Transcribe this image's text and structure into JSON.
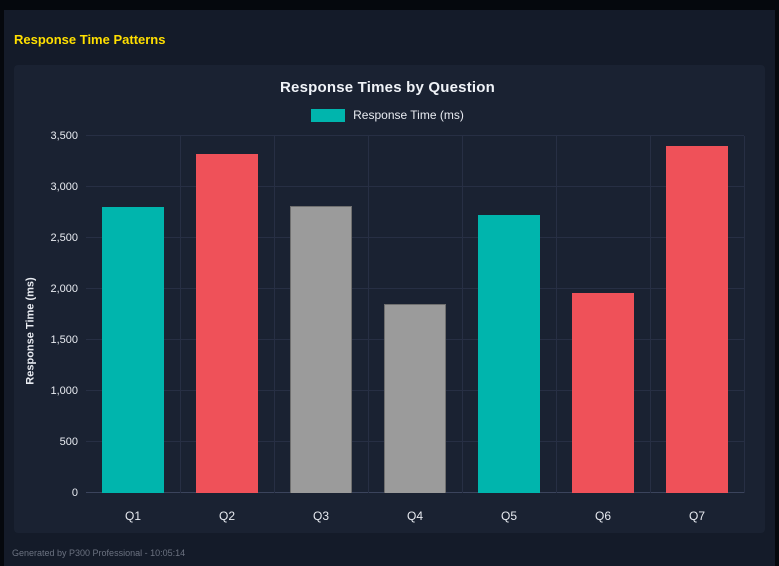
{
  "page": {
    "heading": "Response Time Patterns",
    "footer": "Generated by P300 Professional - 10:05:14"
  },
  "chart_data": {
    "type": "bar",
    "title": "Response Times by Question",
    "legend": [
      {
        "label": "Response Time (ms)",
        "color": "#00b5ad"
      }
    ],
    "legend_position": "top",
    "xlabel": "",
    "ylabel": "Response Time (ms)",
    "categories": [
      "Q1",
      "Q2",
      "Q3",
      "Q4",
      "Q5",
      "Q6",
      "Q7"
    ],
    "values": [
      2800,
      3320,
      2810,
      1850,
      2730,
      1960,
      3400
    ],
    "bar_colors": [
      "#00b5ad",
      "#ef5159",
      "#9b9b9b",
      "#9b9b9b",
      "#00b5ad",
      "#ef5159",
      "#ef5159"
    ],
    "bar_border_colors": [
      "#00b5ad",
      "#ef5159",
      "#6f6f6f",
      "#6f6f6f",
      "#00b5ad",
      "#ef5159",
      "#ef5159"
    ],
    "ylim": [
      0,
      3500
    ],
    "ytick_step": 500,
    "ytick_labels": [
      "0",
      "500",
      "1,000",
      "1,500",
      "2,000",
      "2,500",
      "3,000",
      "3,500"
    ],
    "grid": true
  }
}
